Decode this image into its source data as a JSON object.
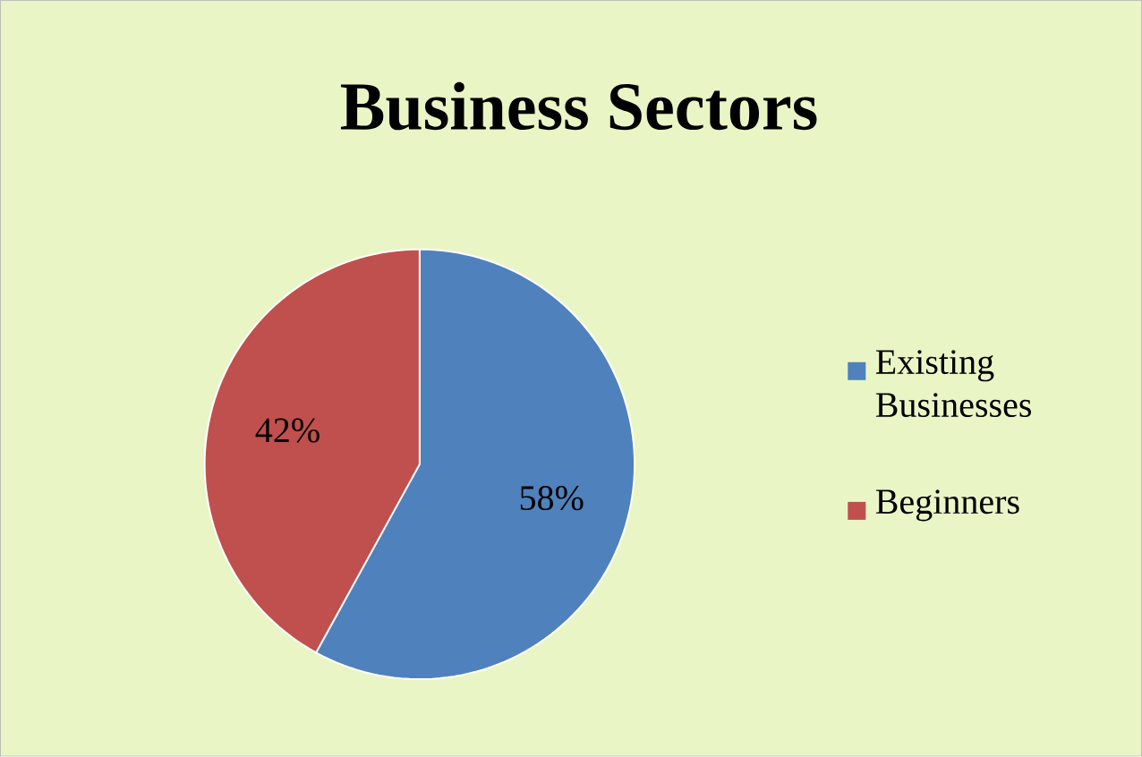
{
  "chart_data": {
    "type": "pie",
    "title": "Business Sectors",
    "categories": [
      "Existing Businesses",
      "Beginners"
    ],
    "values": [
      58,
      42
    ],
    "value_labels": [
      "58%",
      "42%"
    ],
    "colors": [
      "#4f81bd",
      "#c0504d"
    ],
    "legend": "right"
  }
}
